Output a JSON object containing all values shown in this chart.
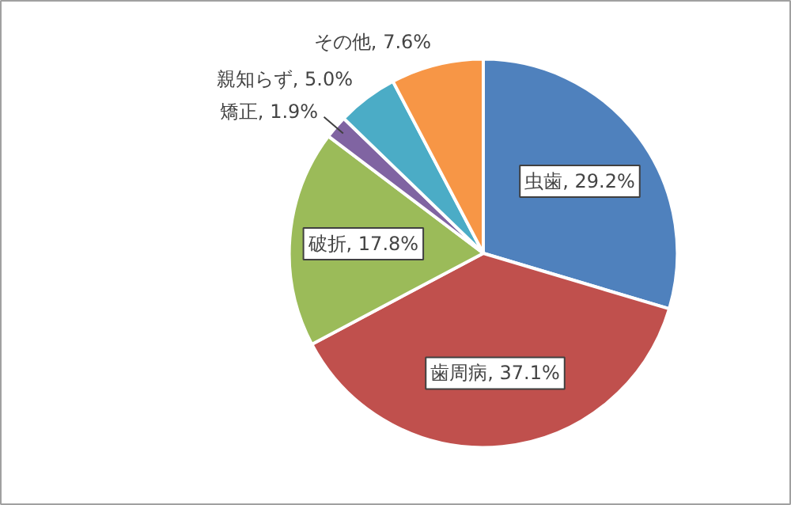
{
  "chart_data": {
    "type": "pie",
    "categories": [
      "虫歯",
      "歯周病",
      "破折",
      "矯正",
      "親知らず",
      "その他"
    ],
    "values": [
      29.2,
      37.1,
      17.8,
      1.9,
      5.0,
      7.6
    ],
    "colors": [
      "#4f81bd",
      "#c0504d",
      "#9bbb59",
      "#8064a2",
      "#4bacc6",
      "#f79646"
    ],
    "value_labels": [
      "29.2%",
      "37.1%",
      "17.8%",
      "1.9%",
      "5.0%",
      "7.6%"
    ]
  }
}
